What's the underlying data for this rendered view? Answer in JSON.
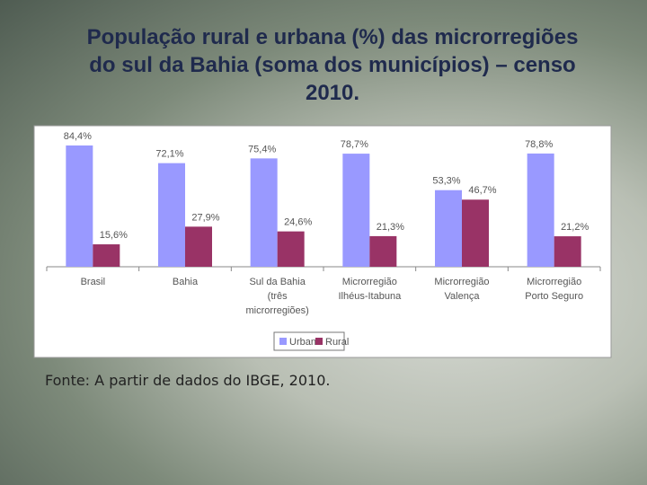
{
  "chart_data": {
    "type": "bar",
    "title": "População rural e urbana (%) das microrregiões do sul da Bahia (soma dos municípios) – censo 2010.",
    "categories": [
      [
        "Brasil"
      ],
      [
        "Bahia"
      ],
      [
        "Sul da Bahia",
        "(três",
        "microrregiões)"
      ],
      [
        "Microrregião",
        "Ilhéus-Itabuna"
      ],
      [
        "Microrregião",
        "Valença"
      ],
      [
        "Microrregião",
        "Porto Seguro"
      ]
    ],
    "series": [
      {
        "name": "Urbana",
        "color": "#9999ff",
        "values": [
          84.4,
          72.1,
          75.4,
          78.7,
          53.3,
          78.8
        ],
        "value_labels": [
          "84,4%",
          "72,1%",
          "75,4%",
          "78,7%",
          "53,3%",
          "78,8%"
        ]
      },
      {
        "name": "Rural",
        "color": "#993366",
        "values": [
          15.6,
          27.9,
          24.6,
          21.3,
          46.7,
          21.2
        ],
        "value_labels": [
          "15,6%",
          "27,9%",
          "24,6%",
          "21,3%",
          "46,7%",
          "21,2%"
        ]
      }
    ],
    "source": "Fonte: A partir de dados do IBGE, 2010."
  }
}
